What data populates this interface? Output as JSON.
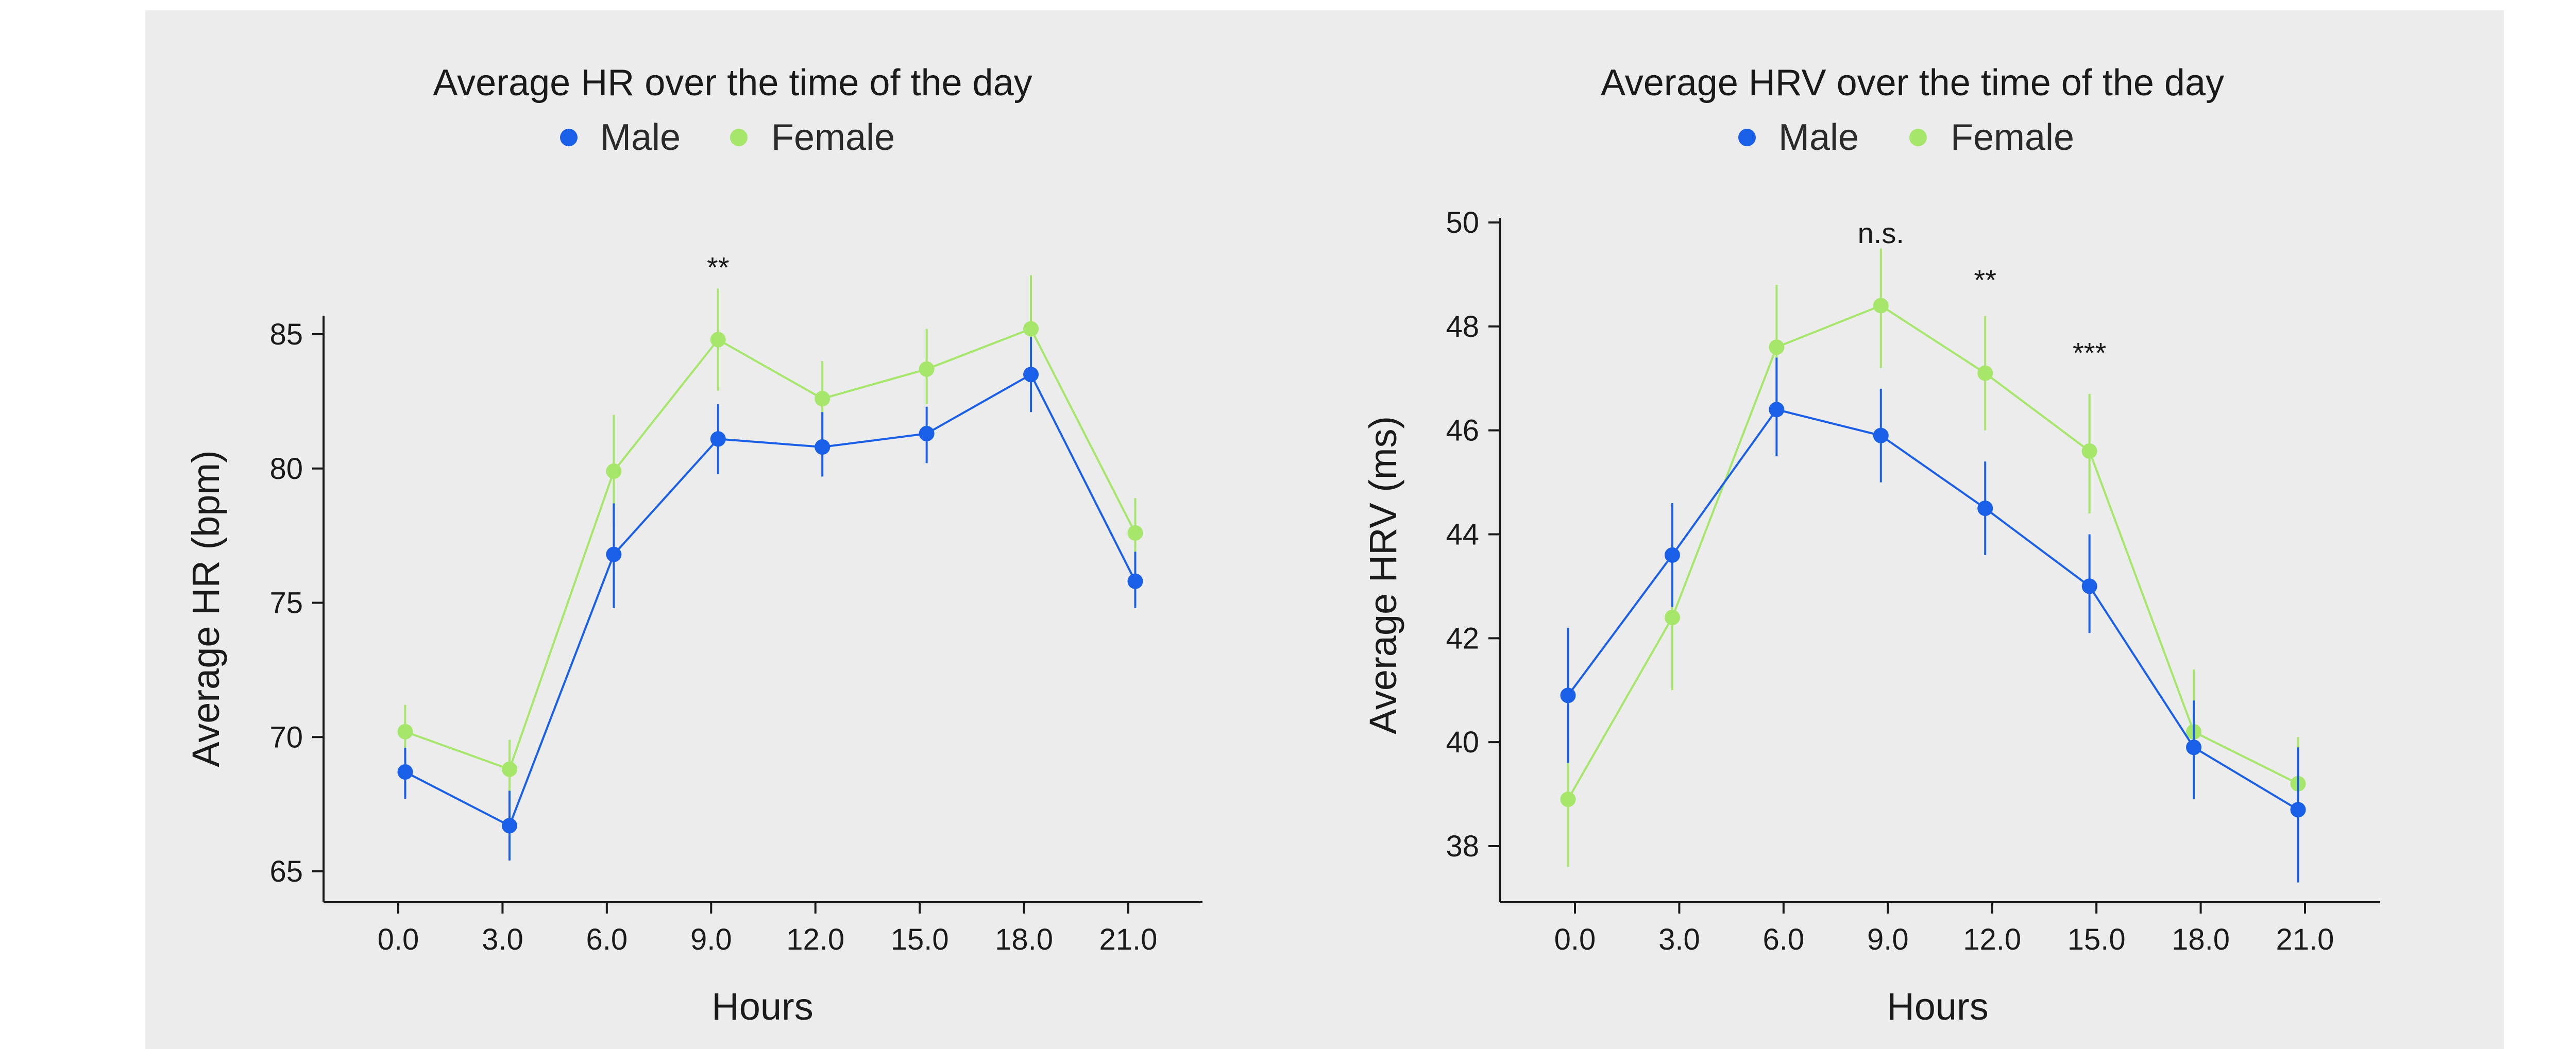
{
  "colors": {
    "male": "#1a5fe8",
    "female": "#a6e66a"
  },
  "chart_data": [
    {
      "type": "line",
      "title": "Average HR over the time of the day",
      "xlabel": "Hours",
      "ylabel": "Average HR (bpm)",
      "xticks": [
        "0.0",
        "3.0",
        "6.0",
        "9.0",
        "12.0",
        "15.0",
        "18.0",
        "21.0"
      ],
      "xtick_values": [
        0,
        3,
        6,
        9,
        12,
        15,
        18,
        21
      ],
      "xlim": [
        -1.8,
        22.2
      ],
      "yticks": [
        "65",
        "70",
        "75",
        "80",
        "85"
      ],
      "ytick_values": [
        65,
        70,
        75,
        80,
        85
      ],
      "ylim": [
        64,
        85.5
      ],
      "legend": {
        "placement": "top-center",
        "entries": [
          "Male",
          "Female"
        ]
      },
      "series": [
        {
          "name": "Male",
          "x": [
            0.2,
            3.2,
            6.2,
            9.2,
            12.2,
            15.2,
            18.2,
            21.2
          ],
          "values": [
            68.7,
            66.7,
            76.8,
            81.1,
            80.8,
            81.3,
            83.5,
            75.8
          ],
          "err_low": [
            67.7,
            65.4,
            74.8,
            79.8,
            79.7,
            80.2,
            82.1,
            74.8
          ],
          "err_high": [
            69.6,
            68.0,
            78.7,
            82.4,
            82.1,
            82.3,
            84.9,
            76.9
          ]
        },
        {
          "name": "Female",
          "x": [
            0.2,
            3.2,
            6.2,
            9.2,
            12.2,
            15.2,
            18.2,
            21.2
          ],
          "values": [
            70.2,
            68.8,
            79.9,
            84.8,
            82.6,
            83.7,
            85.2,
            77.6
          ],
          "err_low": [
            69.3,
            67.6,
            77.9,
            82.9,
            81.4,
            82.4,
            83.0,
            76.4
          ],
          "err_high": [
            71.2,
            69.9,
            82.0,
            86.7,
            84.0,
            85.2,
            87.2,
            78.9
          ]
        }
      ],
      "annotations": [
        {
          "x": 9.2,
          "y": 87.5,
          "text": "**"
        }
      ]
    },
    {
      "type": "line",
      "title": "Average HRV over the time of the day",
      "xlabel": "Hours",
      "ylabel": "Average HRV (ms)",
      "xticks": [
        "0.0",
        "3.0",
        "6.0",
        "9.0",
        "12.0",
        "15.0",
        "18.0",
        "21.0"
      ],
      "xtick_values": [
        0,
        3,
        6,
        9,
        12,
        15,
        18,
        21
      ],
      "xlim": [
        -1.8,
        22.2
      ],
      "yticks": [
        "38",
        "40",
        "42",
        "44",
        "46",
        "48",
        "50"
      ],
      "ytick_values": [
        38,
        40,
        42,
        44,
        46,
        48,
        50
      ],
      "ylim": [
        37,
        50
      ],
      "legend": {
        "placement": "top-center",
        "entries": [
          "Male",
          "Female"
        ]
      },
      "series": [
        {
          "name": "Male",
          "x": [
            -0.2,
            2.8,
            5.8,
            8.8,
            11.8,
            14.8,
            17.8,
            20.8
          ],
          "values": [
            40.9,
            43.6,
            46.4,
            45.9,
            44.5,
            43.0,
            39.9,
            38.7
          ],
          "err_low": [
            39.6,
            42.6,
            45.5,
            45.0,
            43.6,
            42.1,
            38.9,
            37.3
          ],
          "err_high": [
            42.2,
            44.6,
            47.4,
            46.8,
            45.4,
            44.0,
            40.8,
            39.9
          ]
        },
        {
          "name": "Female",
          "x": [
            -0.2,
            2.8,
            5.8,
            8.8,
            11.8,
            14.8,
            17.8,
            20.8
          ],
          "values": [
            38.9,
            42.4,
            47.6,
            48.4,
            47.1,
            45.6,
            40.2,
            39.2
          ],
          "err_low": [
            37.6,
            41.0,
            46.4,
            47.2,
            46.0,
            44.4,
            39.0,
            38.4
          ],
          "err_high": [
            40.1,
            43.7,
            48.8,
            49.5,
            48.2,
            46.7,
            41.4,
            40.1
          ]
        }
      ],
      "annotations": [
        {
          "x": 8.8,
          "y": 49.8,
          "text": "n.s."
        },
        {
          "x": 11.8,
          "y": 48.9,
          "text": "**"
        },
        {
          "x": 14.8,
          "y": 47.5,
          "text": "***"
        }
      ]
    }
  ]
}
